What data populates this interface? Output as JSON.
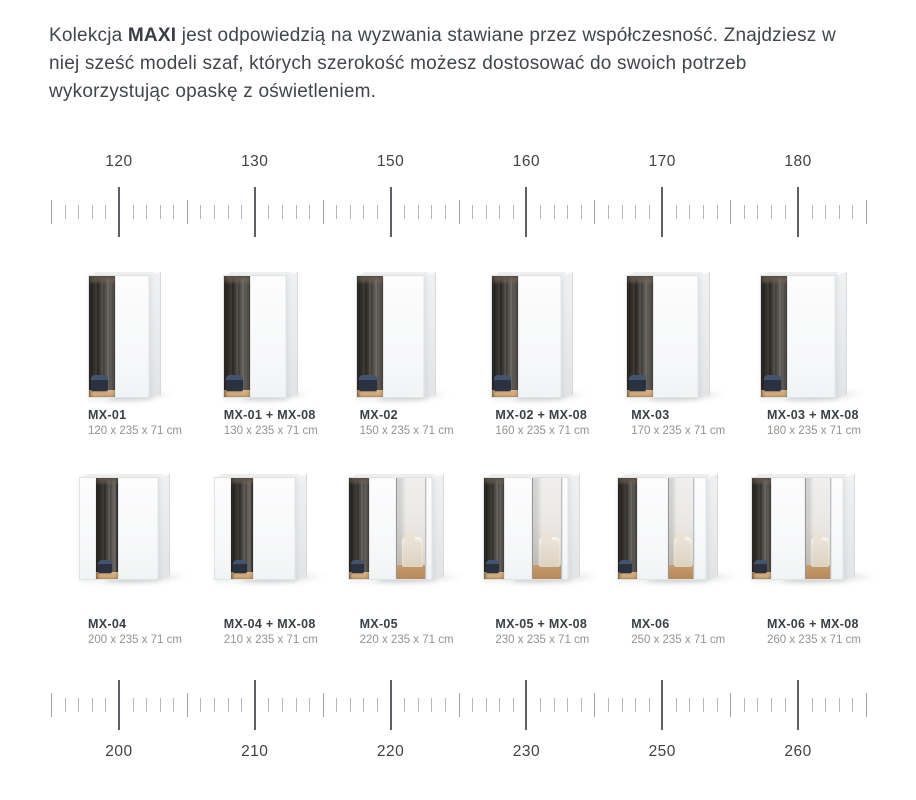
{
  "intro": {
    "lead": "Kolekcja",
    "brand": "MAXI",
    "rest": "jest odpowiedzią na wyzwania stawiane przez współczesność. Znajdziesz w niej sześć modeli szaf, których szerokość możesz dostosować do swoich potrzeb wykorzystując opaskę z oświetleniem."
  },
  "rulers": {
    "top": {
      "labels": [
        "120",
        "130",
        "150",
        "160",
        "170",
        "180"
      ],
      "label_position": "above"
    },
    "bottom": {
      "labels": [
        "200",
        "210",
        "220",
        "230",
        "250",
        "260"
      ],
      "label_position": "below"
    }
  },
  "catalog": {
    "rows": [
      {
        "items": [
          {
            "model": "MX-01",
            "dimensions": "120 x 235 x 71 cm",
            "width_cm": 120,
            "style": "A"
          },
          {
            "model": "MX-01 + MX-08",
            "dimensions": "130 x 235 x 71 cm",
            "width_cm": 130,
            "style": "A"
          },
          {
            "model": "MX-02",
            "dimensions": "150 x 235 x 71 cm",
            "width_cm": 150,
            "style": "A"
          },
          {
            "model": "MX-02 + MX-08",
            "dimensions": "160 x 235 x 71 cm",
            "width_cm": 160,
            "style": "A"
          },
          {
            "model": "MX-03",
            "dimensions": "170 x 235 x 71 cm",
            "width_cm": 170,
            "style": "A"
          },
          {
            "model": "MX-03 + MX-08",
            "dimensions": "180 x 235 x 71 cm",
            "width_cm": 180,
            "style": "A"
          }
        ]
      },
      {
        "items": [
          {
            "model": "MX-04",
            "dimensions": "200 x 235 x 71 cm",
            "width_cm": 200,
            "style": "B"
          },
          {
            "model": "MX-04 + MX-08",
            "dimensions": "210 x 235 x 71 cm",
            "width_cm": 210,
            "style": "B"
          },
          {
            "model": "MX-05",
            "dimensions": "220 x 235 x 71 cm",
            "width_cm": 220,
            "style": "C"
          },
          {
            "model": "MX-05 + MX-08",
            "dimensions": "230 x 235 x 71 cm",
            "width_cm": 230,
            "style": "C"
          },
          {
            "model": "MX-06",
            "dimensions": "250 x 235 x 71 cm",
            "width_cm": 250,
            "style": "D"
          },
          {
            "model": "MX-06 + MX-08",
            "dimensions": "260 x 235 x 71 cm",
            "width_cm": 260,
            "style": "D"
          }
        ]
      }
    ]
  },
  "colors": {
    "text_dark": "#42464c",
    "text_muted": "#8f9397",
    "tick_major": "#5d6165",
    "tick_minor": "#b4b8bc",
    "pouf_navy": "#2a3140",
    "wood": "#dcb68a"
  }
}
